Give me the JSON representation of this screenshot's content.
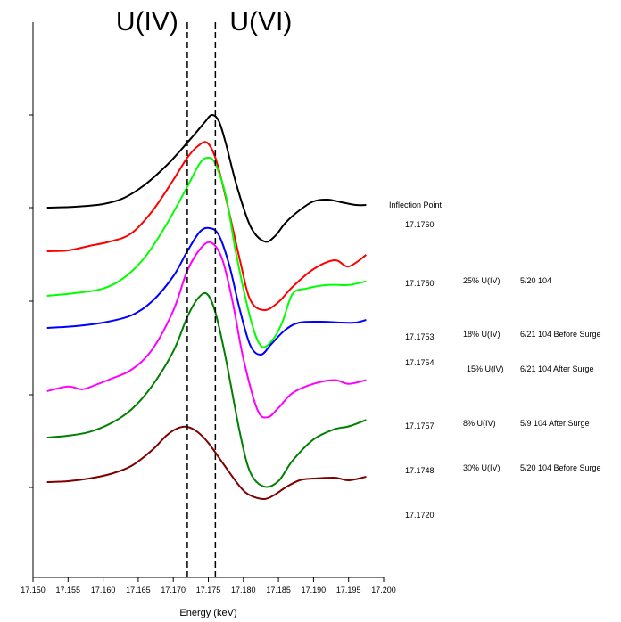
{
  "chart_data": {
    "type": "line",
    "title": "",
    "xlabel": "Energy (keV)",
    "ylabel": "",
    "xlim": [
      17.15,
      17.2
    ],
    "x_ticks": [
      "17.150",
      "17.155",
      "17.160",
      "17.165",
      "17.170",
      "17.175",
      "17.180",
      "17.185",
      "17.190",
      "17.195",
      "17.200"
    ],
    "grid": false,
    "legend": "none",
    "reference_lines": [
      {
        "label": "U(IV)",
        "x": 17.172
      },
      {
        "label": "U(VI)",
        "x": 17.176
      }
    ],
    "inflection_header": "Inflection Point",
    "series": [
      {
        "color": "#000000",
        "inflection": "17.1760",
        "percent": "",
        "sample": "",
        "x": [
          17.152,
          17.156,
          17.16,
          17.163,
          17.166,
          17.169,
          17.171,
          17.173,
          17.1745,
          17.1755,
          17.1765,
          17.1775,
          17.179,
          17.181,
          17.183,
          17.1845,
          17.186,
          17.188,
          17.19,
          17.192,
          17.194,
          17.196,
          17.1975
        ],
        "y": [
          -0.04,
          -0.03,
          0.0,
          0.07,
          0.22,
          0.43,
          0.6,
          0.78,
          0.92,
          1.0,
          0.93,
          0.68,
          0.22,
          -0.25,
          -0.42,
          -0.36,
          -0.21,
          -0.07,
          0.03,
          0.05,
          0.02,
          -0.01,
          -0.01
        ]
      },
      {
        "color": "#ff0000",
        "inflection": "17.1750",
        "percent": "25% U(IV)",
        "sample": "5/20 104",
        "x": [
          17.152,
          17.155,
          17.158,
          17.161,
          17.164,
          17.167,
          17.17,
          17.172,
          17.1735,
          17.1748,
          17.176,
          17.1775,
          17.1795,
          17.181,
          17.183,
          17.185,
          17.187,
          17.19,
          17.193,
          17.195,
          17.1975
        ],
        "y": [
          0.0,
          0.01,
          0.06,
          0.11,
          0.2,
          0.45,
          0.8,
          1.05,
          1.18,
          1.22,
          1.05,
          0.6,
          -0.1,
          -0.55,
          -0.66,
          -0.57,
          -0.4,
          -0.2,
          -0.1,
          -0.17,
          -0.04
        ]
      },
      {
        "color": "#00ff00",
        "inflection": "17.1753",
        "percent": "18% U(IV)",
        "sample": "6/21 104 Before Surge",
        "x": [
          17.152,
          17.156,
          17.16,
          17.163,
          17.166,
          17.169,
          17.172,
          17.1738,
          17.175,
          17.176,
          17.1775,
          17.179,
          17.181,
          17.1825,
          17.184,
          17.1855,
          17.187,
          17.189,
          17.192,
          17.195,
          17.1975
        ],
        "y": [
          0.0,
          0.03,
          0.08,
          0.2,
          0.43,
          0.78,
          1.2,
          1.46,
          1.52,
          1.45,
          1.1,
          0.45,
          -0.25,
          -0.55,
          -0.5,
          -0.3,
          0.02,
          0.08,
          0.12,
          0.12,
          0.16
        ]
      },
      {
        "color": "#0000ff",
        "inflection": "17.1754",
        "percent": "15% U(IV)",
        "sample": "6/21 104 After Surge",
        "x": [
          17.152,
          17.156,
          17.16,
          17.164,
          17.167,
          17.17,
          17.172,
          17.1738,
          17.1752,
          17.1765,
          17.178,
          17.1795,
          17.181,
          17.1825,
          17.184,
          17.186,
          17.188,
          17.191,
          17.194,
          17.196,
          17.1975
        ],
        "y": [
          0.0,
          0.02,
          0.06,
          0.14,
          0.3,
          0.58,
          0.86,
          1.08,
          1.12,
          1.04,
          0.7,
          0.2,
          -0.2,
          -0.3,
          -0.18,
          -0.02,
          0.06,
          0.07,
          0.06,
          0.06,
          0.09
        ]
      },
      {
        "color": "#ff00ff",
        "inflection": "17.1757",
        "percent": "8% U(IV)",
        "sample": "5/9 104 After Surge",
        "x": [
          17.152,
          17.155,
          17.157,
          17.159,
          17.161,
          17.164,
          17.167,
          17.17,
          17.172,
          17.174,
          17.1755,
          17.177,
          17.1785,
          17.18,
          17.182,
          17.1835,
          17.185,
          17.187,
          17.19,
          17.193,
          17.195,
          17.1975
        ],
        "y": [
          0.0,
          0.05,
          0.02,
          0.07,
          0.13,
          0.23,
          0.45,
          0.87,
          1.3,
          1.55,
          1.6,
          1.42,
          0.95,
          0.35,
          -0.2,
          -0.28,
          -0.18,
          -0.02,
          0.08,
          0.12,
          0.08,
          0.12
        ]
      },
      {
        "color": "#008000",
        "inflection": "17.1748",
        "percent": "30% U(IV)",
        "sample": "5/20 104 Before Surge",
        "x": [
          17.152,
          17.155,
          17.158,
          17.161,
          17.164,
          17.167,
          17.17,
          17.172,
          17.1735,
          17.1748,
          17.176,
          17.1775,
          17.1795,
          17.181,
          17.183,
          17.185,
          17.187,
          17.19,
          17.193,
          17.195,
          17.1975
        ],
        "y": [
          0.0,
          0.02,
          0.06,
          0.15,
          0.3,
          0.56,
          0.93,
          1.3,
          1.5,
          1.55,
          1.35,
          0.85,
          0.05,
          -0.38,
          -0.53,
          -0.47,
          -0.25,
          -0.02,
          0.09,
          0.12,
          0.19
        ]
      },
      {
        "color": "#800000",
        "inflection": "17.1720",
        "percent": "",
        "sample": "",
        "x": [
          17.152,
          17.155,
          17.158,
          17.161,
          17.164,
          17.167,
          17.169,
          17.1705,
          17.172,
          17.1735,
          17.175,
          17.177,
          17.1795,
          17.181,
          17.183,
          17.1845,
          17.186,
          17.188,
          17.19,
          17.193,
          17.195,
          17.1975
        ],
        "y": [
          0.0,
          0.01,
          0.04,
          0.09,
          0.18,
          0.36,
          0.52,
          0.6,
          0.62,
          0.56,
          0.44,
          0.22,
          -0.05,
          -0.15,
          -0.19,
          -0.14,
          -0.06,
          0.02,
          0.04,
          0.05,
          0.02,
          0.06
        ]
      }
    ]
  }
}
